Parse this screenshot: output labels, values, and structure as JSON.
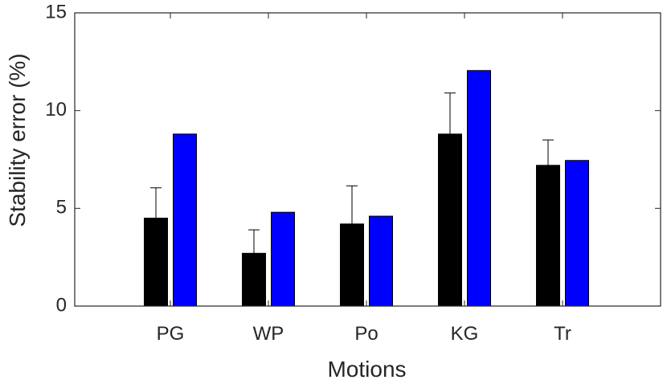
{
  "chart_data": {
    "type": "bar",
    "xlabel": "Motions",
    "ylabel": "Stability error (%)",
    "ylim": [
      0,
      15
    ],
    "yticks": [
      "0",
      "5",
      "10",
      "15"
    ],
    "categories": [
      "PG",
      "WP",
      "Po",
      "KG",
      "Tr"
    ],
    "series": [
      {
        "color": "#000000",
        "values": [
          4.5,
          2.7,
          4.2,
          8.8,
          7.2
        ],
        "error_upper": [
          1.55,
          1.2,
          1.95,
          2.1,
          1.3
        ]
      },
      {
        "color": "#0000ff",
        "values": [
          8.8,
          4.8,
          4.6,
          12.05,
          7.45
        ]
      }
    ],
    "grid": false,
    "legend": "none"
  }
}
